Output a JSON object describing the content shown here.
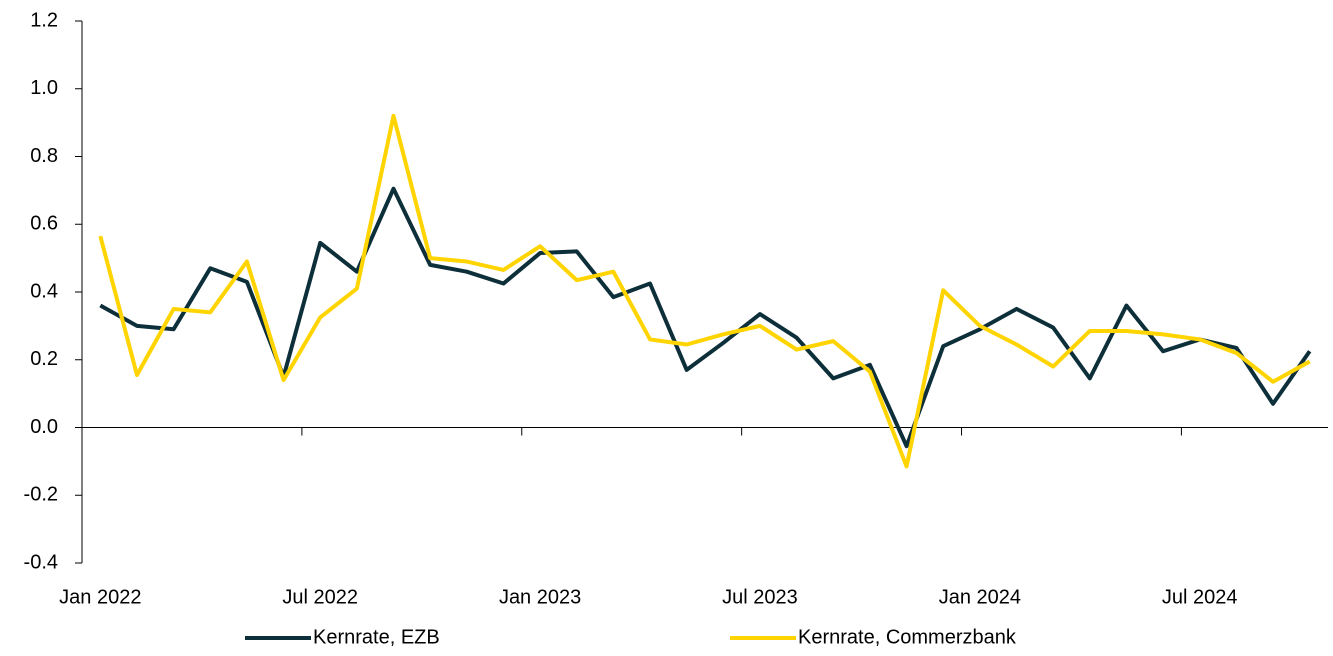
{
  "chart_data": {
    "type": "line",
    "categories": [
      "Jan 2022",
      null,
      null,
      null,
      null,
      null,
      "Jul 2022",
      null,
      null,
      null,
      null,
      null,
      "Jan 2023",
      null,
      null,
      null,
      null,
      null,
      "Jul 2023",
      null,
      null,
      null,
      null,
      null,
      "Jan 2024",
      null,
      null,
      null,
      null,
      null,
      "Jul 2024",
      null,
      null,
      null
    ],
    "series": [
      {
        "name": "Kernrate, EZB",
        "color": "#0d2f3a",
        "values": [
          0.36,
          0.3,
          0.29,
          0.47,
          0.43,
          0.15,
          0.545,
          0.46,
          0.705,
          0.48,
          0.46,
          0.425,
          0.515,
          0.52,
          0.385,
          0.425,
          0.17,
          0.25,
          0.335,
          0.265,
          0.145,
          0.185,
          -0.055,
          0.24,
          0.29,
          0.35,
          0.295,
          0.145,
          0.36,
          0.225,
          0.26,
          0.235,
          0.07,
          0.225
        ]
      },
      {
        "name": "Kernrate, Commerzbank",
        "color": "#ffd400",
        "values": [
          0.565,
          0.155,
          0.35,
          0.34,
          0.49,
          0.14,
          0.325,
          0.41,
          0.92,
          0.5,
          0.49,
          0.465,
          0.535,
          0.435,
          0.46,
          0.26,
          0.245,
          0.275,
          0.3,
          0.23,
          0.255,
          0.165,
          -0.115,
          0.405,
          0.3,
          0.245,
          0.18,
          0.285,
          0.285,
          0.275,
          0.26,
          0.22,
          0.135,
          0.195
        ]
      }
    ],
    "ylim": [
      -0.4,
      1.2
    ],
    "yticks": [
      {
        "value": -0.4,
        "label": "-0.4"
      },
      {
        "value": -0.2,
        "label": "-0.2"
      },
      {
        "value": 0,
        "label": "0.0"
      },
      {
        "value": 0.2,
        "label": "0.2"
      },
      {
        "value": 0.4,
        "label": "0.4"
      },
      {
        "value": 0.6,
        "label": "0.6"
      },
      {
        "value": 0.8,
        "label": "0.8"
      },
      {
        "value": 1.0,
        "label": "1.0"
      },
      {
        "value": 1.2,
        "label": "1.2"
      }
    ],
    "legend": "bottom"
  }
}
